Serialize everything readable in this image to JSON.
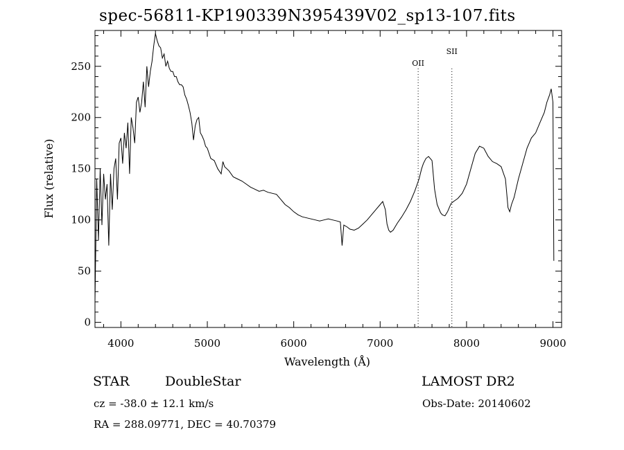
{
  "chart_data": {
    "type": "line",
    "title": "spec-56811-KP190339N395439V02_sp13-107.fits",
    "xlabel": "Wavelength (Å)",
    "ylabel": "Flux (relative)",
    "xlim": [
      3700,
      9100
    ],
    "ylim": [
      -5,
      285
    ],
    "xticks": [
      4000,
      5000,
      6000,
      7000,
      8000,
      9000
    ],
    "yticks": [
      0,
      50,
      100,
      150,
      200,
      250
    ],
    "grid": false,
    "line_color": "#000000",
    "series": [
      {
        "x": [
          3700,
          3720,
          3740,
          3760,
          3780,
          3800,
          3820,
          3840,
          3860,
          3880,
          3900,
          3920,
          3940,
          3960,
          3980,
          4000,
          4020,
          4040,
          4060,
          4080,
          4100,
          4120,
          4140,
          4160,
          4180,
          4200,
          4220,
          4240,
          4260,
          4280,
          4300,
          4320,
          4340,
          4360,
          4380,
          4400,
          4420,
          4440,
          4460,
          4480,
          4500,
          4520,
          4540,
          4560,
          4580,
          4600,
          4620,
          4640,
          4660,
          4680,
          4700,
          4720,
          4740,
          4760,
          4780,
          4800,
          4820,
          4840,
          4860,
          4880,
          4900,
          4920,
          4940,
          4960,
          4980,
          5000,
          5040,
          5080,
          5120,
          5160,
          5180,
          5200,
          5250,
          5300,
          5350,
          5400,
          5450,
          5500,
          5550,
          5600,
          5650,
          5700,
          5750,
          5800,
          5850,
          5900,
          5950,
          6000,
          6050,
          6100,
          6150,
          6200,
          6250,
          6300,
          6350,
          6400,
          6450,
          6500,
          6540,
          6560,
          6580,
          6620,
          6650,
          6700,
          6750,
          6800,
          6850,
          6900,
          6950,
          7000,
          7030,
          7060,
          7080,
          7100,
          7120,
          7150,
          7200,
          7250,
          7300,
          7350,
          7400,
          7450,
          7480,
          7500,
          7530,
          7560,
          7600,
          7630,
          7660,
          7700,
          7720,
          7750,
          7780,
          7800,
          7820,
          7850,
          7900,
          7950,
          8000,
          8050,
          8100,
          8150,
          8200,
          8250,
          8300,
          8350,
          8400,
          8450,
          8480,
          8500,
          8520,
          8550,
          8600,
          8650,
          8700,
          8750,
          8800,
          8850,
          8900,
          8930,
          8960,
          8980,
          9000,
          9010
        ],
        "y": [
          20,
          140,
          80,
          150,
          95,
          145,
          120,
          135,
          75,
          145,
          110,
          150,
          160,
          120,
          175,
          180,
          155,
          185,
          170,
          195,
          145,
          200,
          190,
          175,
          215,
          220,
          205,
          215,
          235,
          210,
          250,
          230,
          245,
          255,
          270,
          282,
          275,
          270,
          268,
          258,
          262,
          250,
          255,
          248,
          245,
          245,
          240,
          240,
          235,
          232,
          232,
          230,
          222,
          218,
          212,
          205,
          195,
          178,
          192,
          198,
          200,
          185,
          182,
          178,
          172,
          170,
          160,
          158,
          150,
          145,
          157,
          152,
          148,
          142,
          140,
          138,
          135,
          132,
          130,
          128,
          129,
          127,
          126,
          125,
          120,
          115,
          112,
          108,
          105,
          103,
          102,
          101,
          100,
          99,
          100,
          101,
          100,
          99,
          98,
          75,
          95,
          93,
          91,
          90,
          92,
          96,
          100,
          105,
          110,
          115,
          118,
          110,
          96,
          90,
          88,
          90,
          97,
          103,
          110,
          118,
          128,
          140,
          150,
          155,
          160,
          162,
          158,
          130,
          115,
          107,
          105,
          104,
          108,
          112,
          116,
          118,
          121,
          126,
          135,
          150,
          165,
          172,
          170,
          162,
          157,
          155,
          152,
          140,
          112,
          108,
          115,
          122,
          140,
          155,
          170,
          180,
          185,
          195,
          205,
          215,
          222,
          228,
          215,
          60
        ]
      }
    ],
    "annotations": [
      {
        "label": "OII",
        "x": 7440
      },
      {
        "label": "SII",
        "x": 7830
      }
    ]
  },
  "info": {
    "object_class": "STAR",
    "subclass": "DoubleStar",
    "survey": "LAMOST DR2",
    "cz": "cz = -38.0 ± 12.1 km/s",
    "obs_date": "Obs-Date: 20140602",
    "coords": "RA = 288.09771, DEC =  40.70379"
  }
}
